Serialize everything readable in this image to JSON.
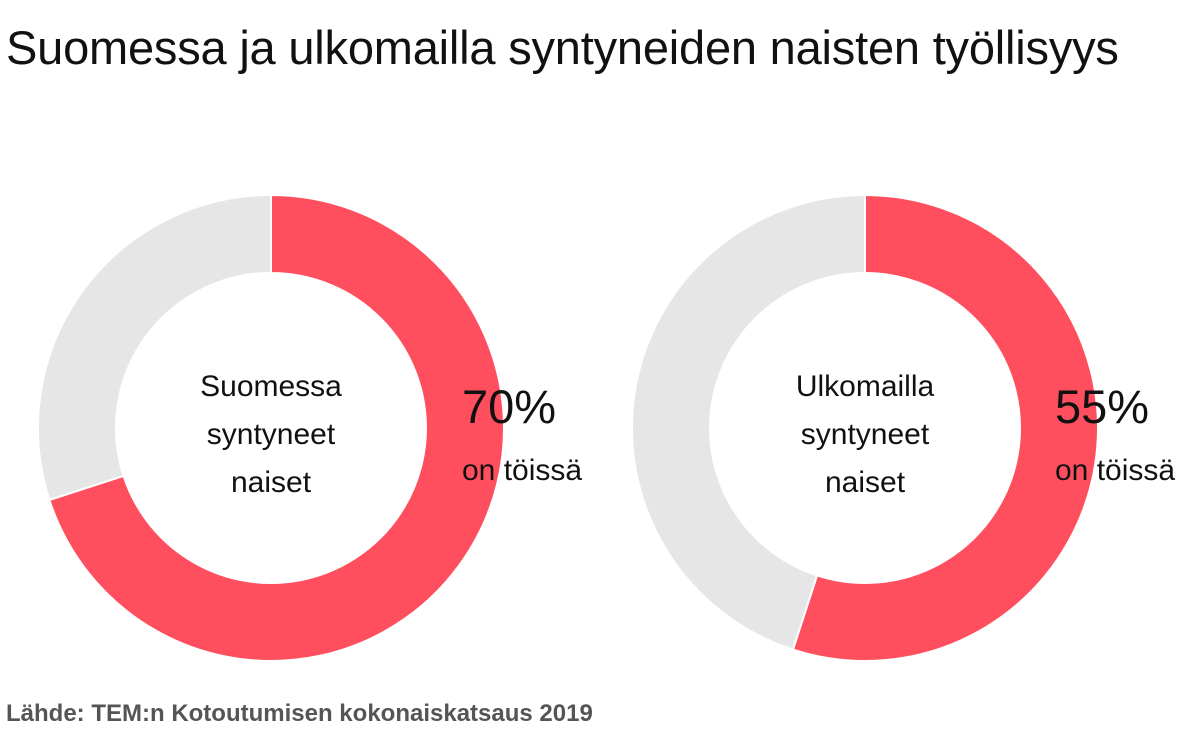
{
  "title": "Suomessa ja ulkomailla syntyneiden naisten työllisyys",
  "source": "Lähde: TEM:n Kotoutumisen kokonaiskatsaus 2019",
  "colors": {
    "value": "#FF4F5E",
    "remainder": "#E6E6E6",
    "text": "#111111",
    "source": "#555555"
  },
  "chart_data": [
    {
      "type": "pie",
      "center_label": [
        "Suomessa",
        "syntyneet",
        "naiset"
      ],
      "value_percent": 70,
      "value_label": "70%",
      "value_sublabel": "on töissä",
      "slices": [
        {
          "name": "on töissä",
          "value": 70
        },
        {
          "name": "",
          "value": 30
        }
      ]
    },
    {
      "type": "pie",
      "center_label": [
        "Ulkomailla",
        "syntyneet",
        "naiset"
      ],
      "value_percent": 55,
      "value_label": "55%",
      "value_sublabel": "on töissä",
      "slices": [
        {
          "name": "on töissä",
          "value": 55
        },
        {
          "name": "",
          "value": 45
        }
      ]
    }
  ]
}
